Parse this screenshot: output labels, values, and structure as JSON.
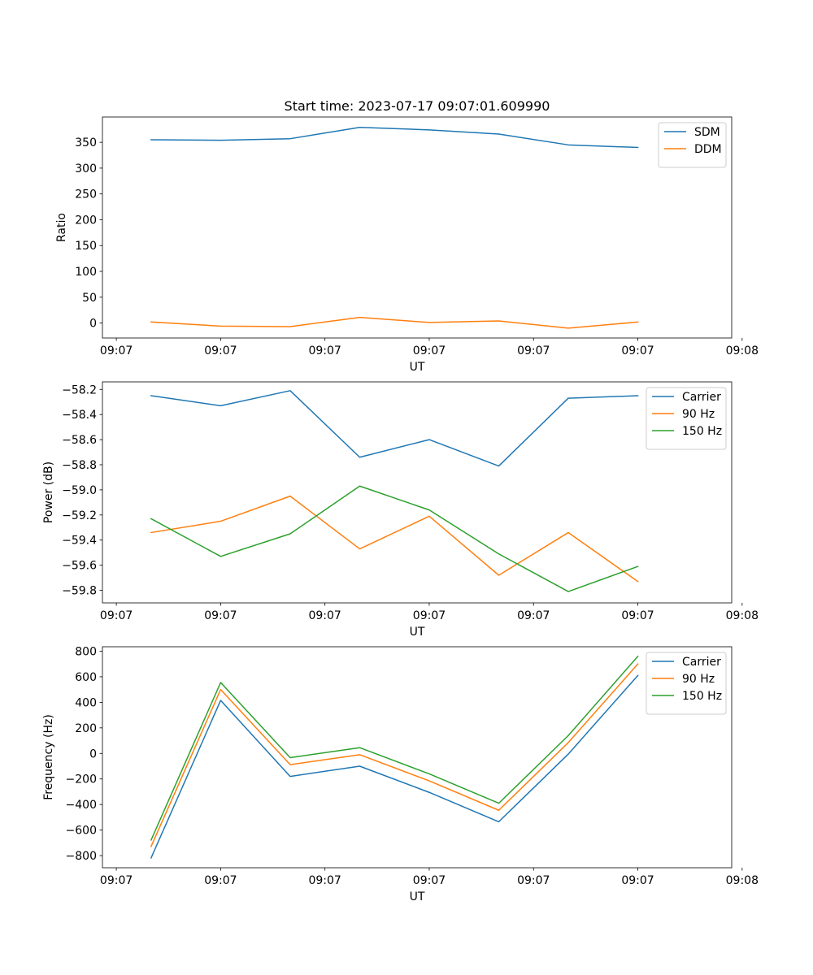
{
  "figure_title": "Start time: 2023-07-17 09:07:01.609990",
  "chart_data": [
    {
      "type": "line",
      "title": "Start time: 2023-07-17 09:07:01.609990",
      "xlabel": "UT",
      "ylabel": "Ratio",
      "x": [
        1.5,
        2.5,
        3.5,
        4.5,
        5.5,
        6.5,
        7.5,
        8.5
      ],
      "xlim": [
        0.8,
        9.85
      ],
      "x_ticks": [
        1,
        2.5,
        4,
        5.5,
        7,
        8.5,
        10
      ],
      "x_tick_labels": [
        "09:07",
        "09:07",
        "09:07",
        "09:07",
        "09:07",
        "09:07",
        "09:08"
      ],
      "ylim": [
        -29,
        399
      ],
      "y_ticks": [
        0,
        50,
        100,
        150,
        200,
        250,
        300,
        350
      ],
      "y_tick_labels": [
        "0",
        "50",
        "100",
        "150",
        "200",
        "250",
        "300",
        "350"
      ],
      "legend_position": "top-right",
      "series": [
        {
          "name": "SDM",
          "color": "#1f77b4",
          "values": [
            355,
            354,
            357,
            379,
            374,
            366,
            345,
            340
          ]
        },
        {
          "name": "DDM",
          "color": "#ff7f0e",
          "values": [
            2,
            -6,
            -7,
            11,
            1,
            4,
            -10,
            2
          ]
        }
      ]
    },
    {
      "type": "line",
      "title": "",
      "xlabel": "UT",
      "ylabel": "Power (dB)",
      "x": [
        1.5,
        2.5,
        3.5,
        4.5,
        5.5,
        6.5,
        7.5,
        8.5
      ],
      "xlim": [
        0.8,
        9.85
      ],
      "x_ticks": [
        1,
        2.5,
        4,
        5.5,
        7,
        8.5,
        10
      ],
      "x_tick_labels": [
        "09:07",
        "09:07",
        "09:07",
        "09:07",
        "09:07",
        "09:07",
        "09:08"
      ],
      "ylim": [
        -59.9,
        -58.14
      ],
      "y_ticks": [
        -59.8,
        -59.6,
        -59.4,
        -59.2,
        -59.0,
        -58.8,
        -58.6,
        -58.4,
        -58.2
      ],
      "y_tick_labels": [
        "−59.8",
        "−59.6",
        "−59.4",
        "−59.2",
        "−59.0",
        "−58.8",
        "−58.6",
        "−58.4",
        "−58.2"
      ],
      "legend_position": "top-right",
      "series": [
        {
          "name": "Carrier",
          "color": "#1f77b4",
          "values": [
            -58.25,
            -58.33,
            -58.21,
            -58.74,
            -58.6,
            -58.81,
            -58.27,
            -58.25
          ]
        },
        {
          "name": "90 Hz",
          "color": "#ff7f0e",
          "values": [
            -59.34,
            -59.25,
            -59.05,
            -59.47,
            -59.21,
            -59.68,
            -59.34,
            -59.73
          ]
        },
        {
          "name": "150 Hz",
          "color": "#2ca02c",
          "values": [
            -59.23,
            -59.53,
            -59.35,
            -58.97,
            -59.16,
            -59.51,
            -59.81,
            -59.61
          ]
        }
      ]
    },
    {
      "type": "line",
      "title": "",
      "xlabel": "UT",
      "ylabel": "Frequency (Hz)",
      "x": [
        1.5,
        2.5,
        3.5,
        4.5,
        5.5,
        6.5,
        7.5,
        8.5
      ],
      "xlim": [
        0.8,
        9.85
      ],
      "x_ticks": [
        1,
        2.5,
        4,
        5.5,
        7,
        8.5,
        10
      ],
      "x_tick_labels": [
        "09:07",
        "09:07",
        "09:07",
        "09:07",
        "09:07",
        "09:07",
        "09:08"
      ],
      "ylim": [
        -895,
        835
      ],
      "y_ticks": [
        -800,
        -600,
        -400,
        -200,
        0,
        200,
        400,
        600,
        800
      ],
      "y_tick_labels": [
        "−800",
        "−600",
        "−400",
        "−200",
        "0",
        "200",
        "400",
        "600",
        "800"
      ],
      "legend_position": "top-right",
      "series": [
        {
          "name": "Carrier",
          "color": "#1f77b4",
          "values": [
            -818,
            415,
            -180,
            -100,
            -305,
            -535,
            -5,
            610
          ]
        },
        {
          "name": "90 Hz",
          "color": "#ff7f0e",
          "values": [
            -728,
            500,
            -88,
            -10,
            -215,
            -445,
            85,
            700
          ]
        },
        {
          "name": "150 Hz",
          "color": "#2ca02c",
          "values": [
            -678,
            555,
            -33,
            45,
            -160,
            -390,
            140,
            760
          ]
        }
      ]
    }
  ]
}
